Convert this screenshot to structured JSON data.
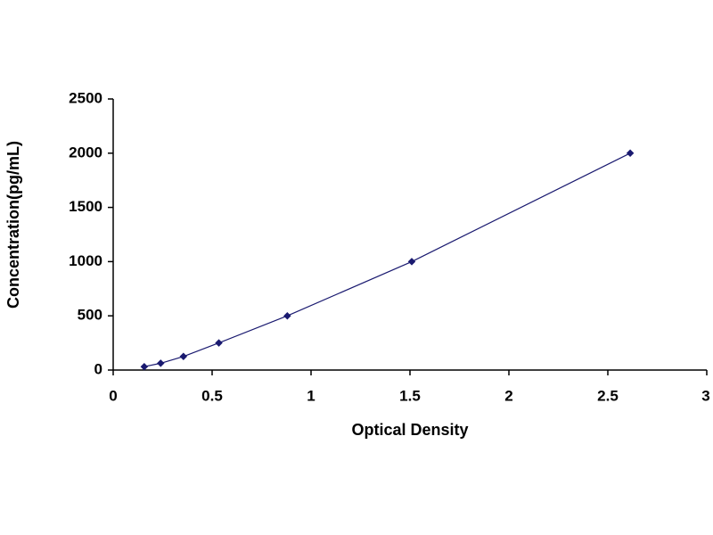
{
  "chart_data": {
    "type": "scatter",
    "x_label": "Optical Density",
    "y_label": "Concentration(pg/mL)",
    "series": [
      {
        "color": "#1a1a70",
        "x": [
          0.157,
          0.24,
          0.355,
          0.534,
          0.88,
          1.509,
          2.613
        ],
        "values": [
          31.25,
          62.5,
          125,
          250,
          500,
          1000,
          2000
        ]
      }
    ],
    "xlim": [
      0,
      3
    ],
    "xticks": [
      0,
      0.5,
      1,
      1.5,
      2,
      2.5,
      3
    ],
    "ylim": [
      0,
      2500
    ],
    "yticks": [
      0,
      500,
      1000,
      1500,
      2000,
      2500
    ],
    "grid": false
  }
}
